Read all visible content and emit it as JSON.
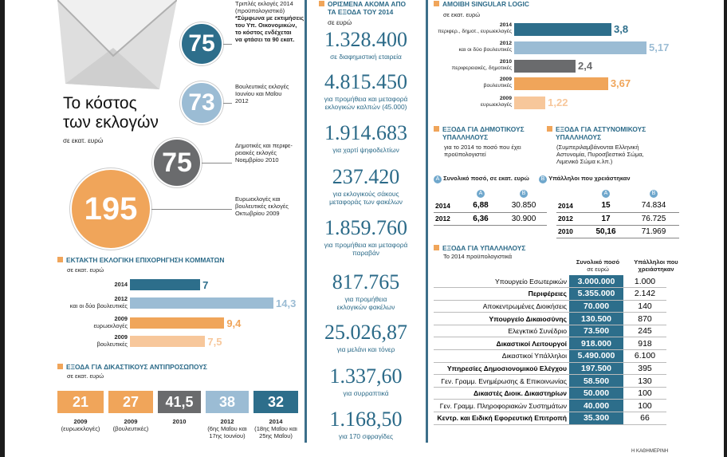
{
  "headline": {
    "title_line1": "Το κόστος",
    "title_line2": "των εκλογών",
    "unit": "σε εκατ. ευρώ"
  },
  "election_costs": [
    {
      "value": "75",
      "color": "#2d6e8b",
      "label": [
        "Τριπλές εκλογές 2014",
        "(προϋπολογιστικό)"
      ],
      "note": [
        "*Σύμφωνα με εκτιμήσεις",
        "του Υπ. Οικονομικών,",
        "το κόστος ενδέχεται",
        "να φτάσει τα 90 εκατ."
      ]
    },
    {
      "value": "73",
      "color": "#9bbcd4",
      "label": [
        "Βουλευτικές εκλογές",
        "Ιουνίου και Μαΐου",
        "2012"
      ]
    },
    {
      "value": "75",
      "color": "#6a6b6d",
      "label": [
        "Δημοτικές και περιφε-",
        "ρειακές εκλογές",
        "Νοεμβρίου 2010"
      ]
    },
    {
      "value": "195",
      "color": "#f0a55a",
      "label": [
        "Ευρωεκλογές και",
        "βουλευτικές εκλογές",
        "Οκτωβρίου 2009"
      ]
    }
  ],
  "party_funding": {
    "title": "ΕΚΤΑΚΤΗ ΕΚΛΟΓΙΚΗ ΕΠΙΧΟΡΗΓΗΣΗ ΚΟΜΜΑΤΩΝ",
    "unit": "σε εκατ. ευρώ",
    "rows": [
      {
        "label": [
          "2014"
        ],
        "value": "7",
        "num": 7,
        "color": "#2d6e8b"
      },
      {
        "label": [
          "2012",
          "και οι δύο βουλευτικές"
        ],
        "value": "14,3",
        "num": 14.3,
        "color": "#9bbcd4"
      },
      {
        "label": [
          "2009",
          "ευρωεκλογές"
        ],
        "value": "9,4",
        "num": 9.4,
        "color": "#f0a55a"
      },
      {
        "label": [
          "2009",
          "βουλευτικές"
        ],
        "value": "7,5",
        "num": 7.5,
        "color": "#f7c79b"
      }
    ]
  },
  "judicial": {
    "title": "ΕΞΟΔΑ ΓΙΑ ΔΙΚΑΣΤΙΚΟΥΣ ΑΝΤΙΠΡΟΣΩΠΟΥΣ",
    "unit": "σε εκατ. ευρώ",
    "items": [
      {
        "value": "21",
        "color": "#f0a55a",
        "year": "2009",
        "sub": [
          "(ευρωεκλογές)"
        ]
      },
      {
        "value": "27",
        "color": "#f0a55a",
        "year": "2009",
        "sub": [
          "(βουλευτικές)"
        ]
      },
      {
        "value": "41,5",
        "color": "#6a6b6d",
        "year": "2010",
        "sub": []
      },
      {
        "value": "38",
        "color": "#9bbcd4",
        "year": "2012",
        "sub": [
          "(6ης Μαΐου και",
          "17ης Ιουνίου)"
        ]
      },
      {
        "value": "32",
        "color": "#2d6e8b",
        "year": "2014",
        "sub": [
          "(18ης Μαΐου και",
          "25ης Μαΐου)"
        ]
      }
    ]
  },
  "middle": {
    "title": [
      "ΟΡΙΣΜΕΝΑ ΑΚΟΜΑ ΑΠΟ",
      "ΤΑ ΕΞΟΔΑ ΤΟΥ 2014"
    ],
    "unit": "σε ευρώ",
    "items": [
      {
        "value": "1.328.400",
        "desc": [
          "σε διαφημιστική εταιρεία"
        ]
      },
      {
        "value": "4.815.450",
        "desc": [
          "για προμήθεια και μεταφορά",
          "εκλογικών καλπών (45.000)"
        ]
      },
      {
        "value": "1.914.683",
        "desc": [
          "για χαρτί ψηφοδελτίων"
        ]
      },
      {
        "value": "237.420",
        "desc": [
          "για εκλογικούς σάκους",
          "μεταφοράς των φακέλων"
        ]
      },
      {
        "value": "1.859.760",
        "desc": [
          "για προμήθεια και μεταφορά",
          "παραβάν"
        ]
      },
      {
        "value": "817.765",
        "desc": [
          "για προμήθεια",
          "εκλογικών φακέλων"
        ]
      },
      {
        "value": "25.026,87",
        "desc": [
          "για μελάνι και τόνερ"
        ]
      },
      {
        "value": "1.337,60",
        "desc": [
          "για συρραπτικά"
        ]
      },
      {
        "value": "1.168,50",
        "desc": [
          "για 170 σφραγίδες"
        ]
      }
    ]
  },
  "singular": {
    "title": "ΑΜΟΙΒΗ SINGULAR LOGIC",
    "unit": "σε εκατ. ευρώ",
    "rows": [
      {
        "label": [
          "2014",
          "περιφερ., δημοτ., ευρωεκλογές"
        ],
        "value": "3,8",
        "num": 3.8,
        "color": "#2d6e8b"
      },
      {
        "label": [
          "2012",
          "και οι δύο βουλευτικές"
        ],
        "value": "5,17",
        "num": 5.17,
        "color": "#9bbcd4"
      },
      {
        "label": [
          "2010",
          "περιφερειακές, δημοτικές"
        ],
        "value": "2,4",
        "num": 2.4,
        "color": "#6a6b6d"
      },
      {
        "label": [
          "2009",
          "βουλευτικές"
        ],
        "value": "3,67",
        "num": 3.67,
        "color": "#f0a55a"
      },
      {
        "label": [
          "2009",
          "ευρωεκλογές"
        ],
        "value": "1,22",
        "num": 1.22,
        "color": "#f7c79b"
      }
    ]
  },
  "municipal": {
    "title": [
      "ΕΞΟΔΑ ΓΙΑ ΔΗΜΟΤΙΚΟΥΣ",
      "ΥΠΑΛΛΗΛΟΥΣ"
    ],
    "note": [
      "για το 2014 το ποσό που έχει",
      "προϋπολογιστεί"
    ],
    "rows": [
      {
        "year": "2014",
        "a": "6,88",
        "b": "30.850"
      },
      {
        "year": "2012",
        "a": "6,36",
        "b": "30.900"
      }
    ]
  },
  "police": {
    "title": [
      "ΕΞΟΔΑ ΓΙΑ ΑΣΤΥΝΟΜΙΚΟΥΣ",
      "ΥΠΑΛΛΗΛΟΥΣ"
    ],
    "note": [
      "(Συμπεριλαμβάνονται Ελληνική",
      "Αστυνομία, Πυροσβεστικό Σώμα,",
      "Λιμενικό Σώμα κ.λπ.)"
    ],
    "rows": [
      {
        "year": "2014",
        "a": "15",
        "b": "74.834"
      },
      {
        "year": "2012",
        "a": "17",
        "b": "76.725"
      },
      {
        "year": "2010",
        "a": "50,16",
        "b": "71.969"
      }
    ]
  },
  "legend": {
    "a_letter": "A",
    "a_text": "Συνολικό ποσό, σε εκατ. ευρώ",
    "b_letter": "B",
    "b_text": "Υπάλληλοι που χρειάστηκαν"
  },
  "employees": {
    "title": "ΕΞΟΔΑ ΓΙΑ ΥΠΑΛΛΗΛΟΥΣ",
    "note": "Το 2014 προϋπολογιστικά",
    "col1": [
      "Συνολικό ποσό",
      "σε ευρώ"
    ],
    "col2": [
      "Υπάλληλοι που",
      "χρειάστηκαν"
    ],
    "rows": [
      {
        "name": "Υπουργείο Εσωτερικών",
        "total": "3.000.000",
        "emp": "1.000"
      },
      {
        "name": "Περιφέρειες",
        "total": "5.355.000",
        "emp": "2.142"
      },
      {
        "name": "Αποκεντρωμένες Διοικήσεις",
        "total": "70.000",
        "emp": "140"
      },
      {
        "name": "Υπουργείο Δικαιοσύνης",
        "total": "130.500",
        "emp": "870"
      },
      {
        "name": "Ελεγκτικό Συνέδριο",
        "total": "73.500",
        "emp": "245"
      },
      {
        "name": "Δικαστικοί Λειτουργοί",
        "total": "918.000",
        "emp": "918"
      },
      {
        "name": "Δικαστικοί Υπάλληλοι",
        "total": "5.490.000",
        "emp": "6.100"
      },
      {
        "name": "Υπηρεσίες Δημοσιονομικού Ελέγχου",
        "total": "197.500",
        "emp": "395"
      },
      {
        "name": "Γεν. Γραμμ. Ενημέρωσης & Επικοινωνίας",
        "total": "58.500",
        "emp": "130"
      },
      {
        "name": "Δικαστές Διοικ. Δικαστηρίων",
        "total": "50.000",
        "emp": "100"
      },
      {
        "name": "Γεν. Γραμμ. Πληροφοριακών Συστημάτων",
        "total": "40.000",
        "emp": "100"
      },
      {
        "name": "Κεντρ. και Ειδική Εφορευτική Επιτροπή",
        "total": "35.300",
        "emp": "66"
      }
    ]
  },
  "credit": "Η ΚΑΘΗΜΕΡΙΝΗ"
}
